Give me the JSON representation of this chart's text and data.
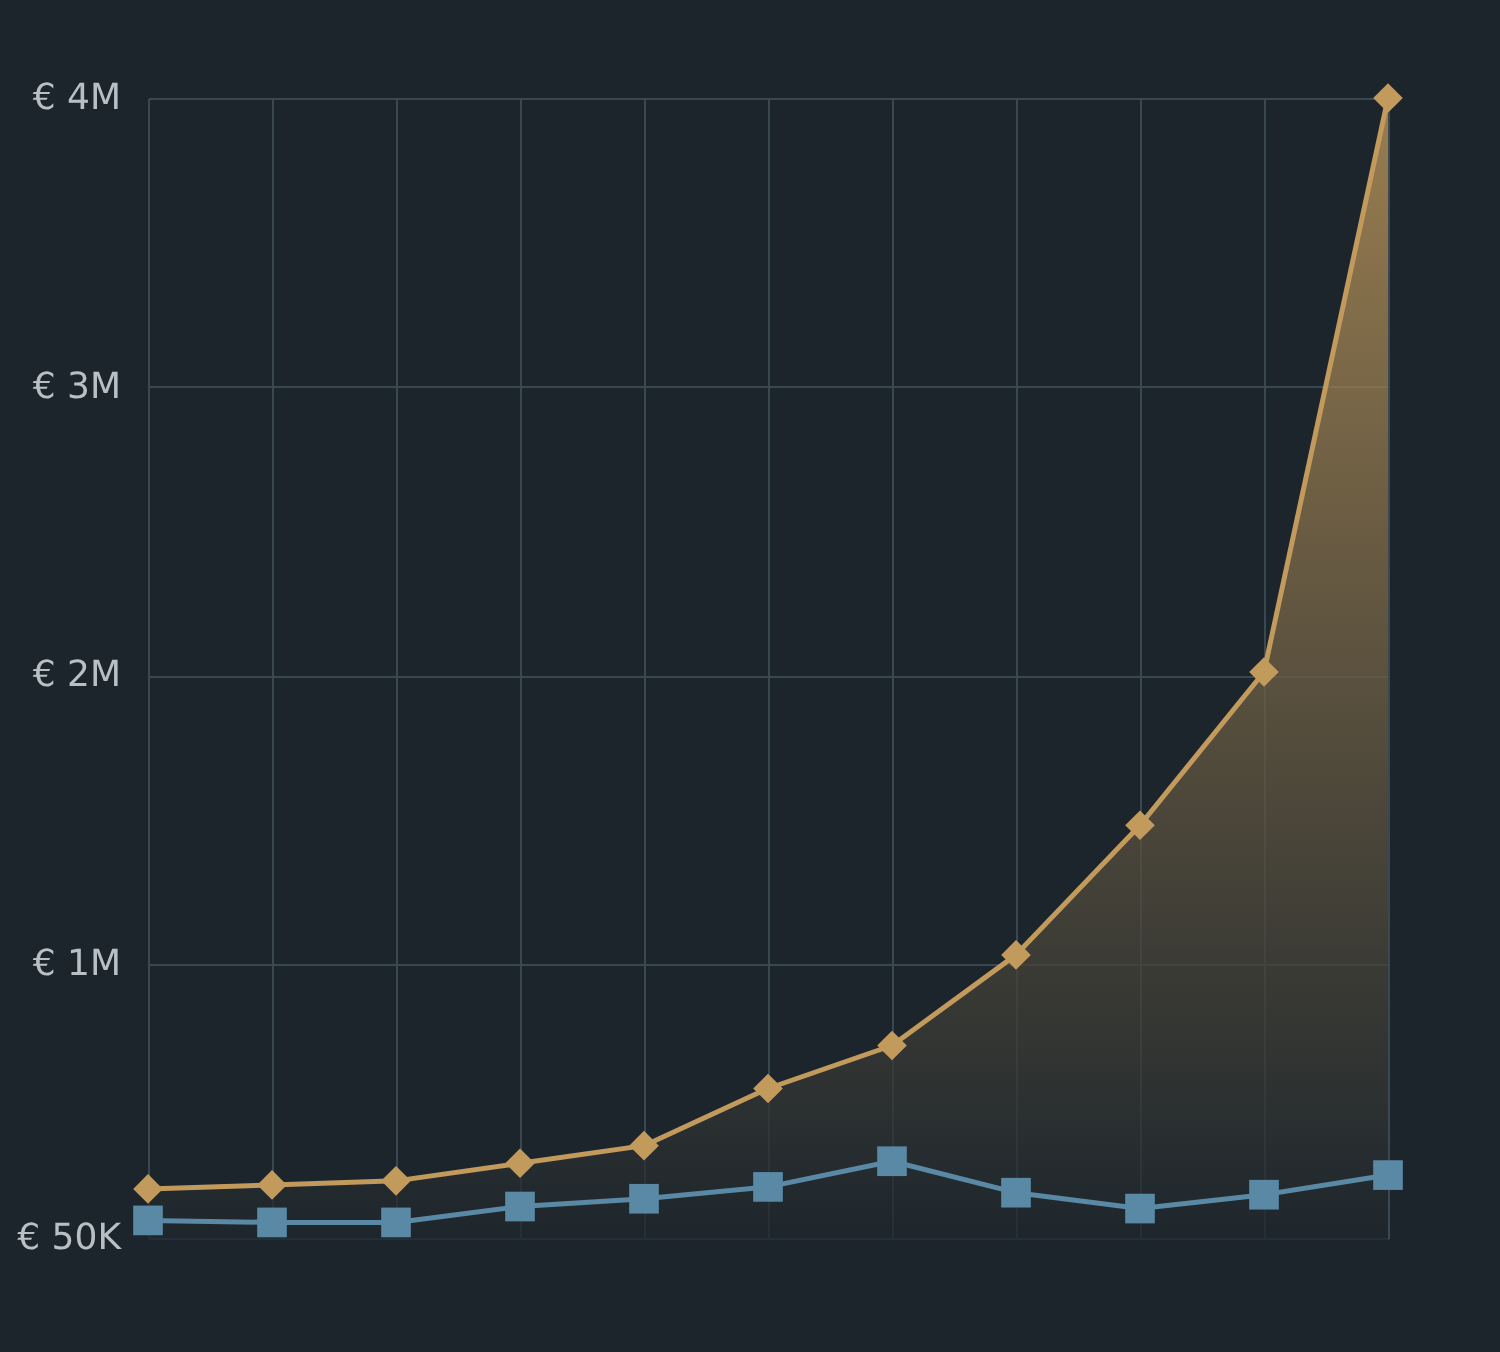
{
  "chart_data": {
    "type": "area",
    "tick_labels": "y",
    "grid": true,
    "categories": [
      null,
      null,
      null,
      null,
      null,
      null,
      null,
      null,
      null,
      null,
      null
    ],
    "ylim": [
      50000,
      4000000
    ],
    "yticks": [
      {
        "value": 50000,
        "label": "€ 50K"
      },
      {
        "value": 1000000,
        "label": "€ 1M"
      },
      {
        "value": 2000000,
        "label": "€ 2M"
      },
      {
        "value": 3000000,
        "label": "€ 3M"
      },
      {
        "value": 4000000,
        "label": "€ 4M"
      }
    ],
    "series": [
      {
        "color": "#c29a5c",
        "marker": "diamond",
        "values": [
          220000,
          234000,
          248000,
          309000,
          370000,
          568000,
          717000,
          1031000,
          1480000,
          2011000,
          4000000
        ]
      },
      {
        "type": "line",
        "color": "#5a89a6",
        "marker": "square",
        "values": [
          111000,
          104000,
          104000,
          159000,
          186000,
          227000,
          316000,
          207000,
          152000,
          200000,
          268000
        ]
      }
    ]
  }
}
